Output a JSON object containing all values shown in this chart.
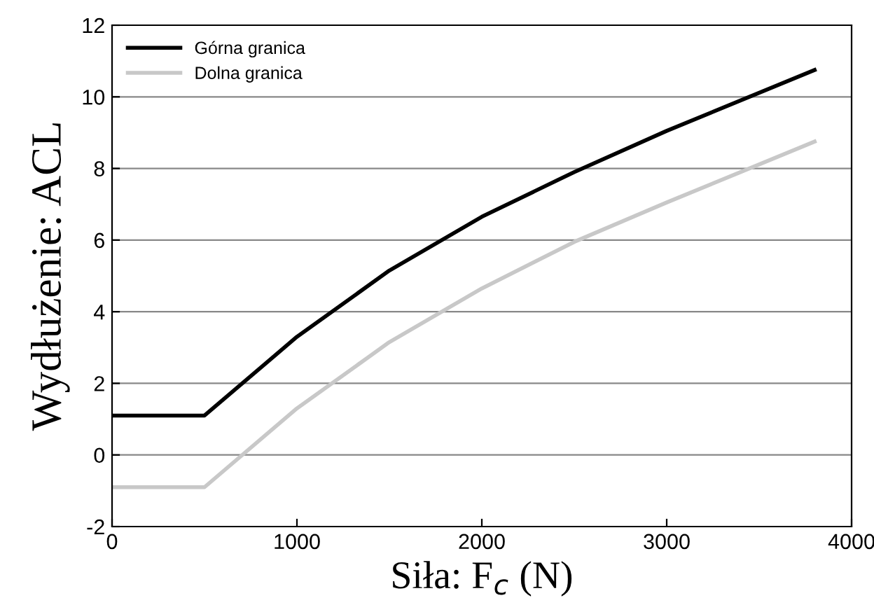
{
  "chart_data": {
    "type": "line",
    "xlabel": "Siła: F$_{c}$ (N)",
    "ylabel": "Wydłużenie: ACL",
    "x": [
      0,
      500,
      1000,
      1500,
      2000,
      2500,
      3000,
      3800
    ],
    "series": [
      {
        "name": "Górna granica",
        "color": "#000000",
        "values": [
          1.1,
          1.1,
          3.3,
          5.15,
          6.65,
          7.9,
          9.05,
          10.75
        ]
      },
      {
        "name": "Dolna granica",
        "color": "#c8c8c8",
        "values": [
          -0.9,
          -0.9,
          1.3,
          3.15,
          4.65,
          5.95,
          7.05,
          8.75
        ]
      }
    ],
    "xlim": [
      0,
      4000
    ],
    "xticks": [
      0,
      1000,
      2000,
      3000,
      4000
    ],
    "ylim": [
      -2,
      12
    ],
    "yticks": [
      -2,
      0,
      2,
      4,
      6,
      8,
      10,
      12
    ],
    "grid": "y",
    "legend": "top left",
    "marker": "none",
    "line_style": "solid"
  }
}
